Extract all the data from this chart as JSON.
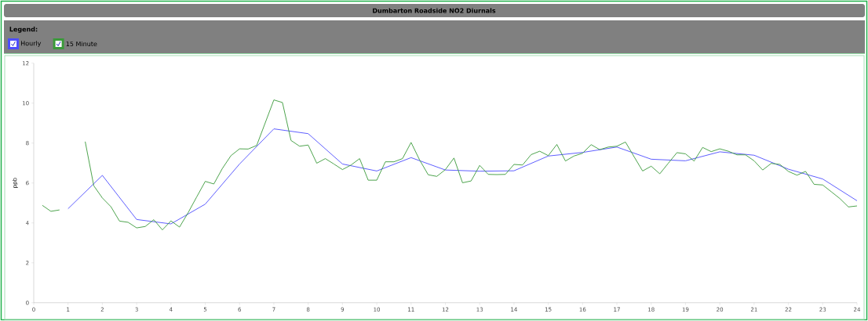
{
  "chart_data": {
    "type": "line",
    "title": "Dumbarton Roadside NO2 Diurnals",
    "legend_title": "Legend:",
    "ylabel": "ppb",
    "legend": "top left",
    "xlim": [
      0,
      24
    ],
    "xticks": [
      0,
      1,
      2,
      3,
      4,
      5,
      6,
      7,
      8,
      9,
      10,
      11,
      12,
      13,
      14,
      15,
      16,
      17,
      18,
      19,
      20,
      21,
      22,
      23,
      24
    ],
    "ylim": [
      0,
      12
    ],
    "yticks": [
      0,
      2,
      4,
      6,
      8,
      10,
      12
    ],
    "series": [
      {
        "name": "Hourly",
        "color": "#4d4dff",
        "x": [
          1,
          2,
          3,
          4,
          5,
          6,
          7,
          8,
          9,
          10,
          11,
          12,
          13,
          14,
          15,
          16,
          17,
          18,
          19,
          20,
          21,
          22,
          23,
          24
        ],
        "values": [
          4.71,
          6.38,
          4.17,
          3.95,
          4.94,
          6.95,
          8.71,
          8.47,
          6.95,
          6.6,
          7.27,
          6.65,
          6.59,
          6.61,
          7.35,
          7.53,
          7.8,
          7.19,
          7.11,
          7.56,
          7.39,
          6.69,
          6.2,
          5.11
        ]
      },
      {
        "name": "15 Minute",
        "color": "#3a9a3a",
        "x": [
          0.25,
          0.5,
          0.75,
          1,
          1.25,
          1.5,
          1.75,
          2,
          2.25,
          2.5,
          2.75,
          3,
          3.25,
          3.5,
          3.75,
          4,
          4.25,
          4.5,
          4.75,
          5,
          5.25,
          5.5,
          5.75,
          6,
          6.25,
          6.5,
          6.75,
          7,
          7.25,
          7.5,
          7.75,
          8,
          8.25,
          8.5,
          8.75,
          9,
          9.25,
          9.5,
          9.75,
          10,
          10.25,
          10.5,
          10.75,
          11,
          11.25,
          11.5,
          11.75,
          12,
          12.25,
          12.5,
          12.75,
          13,
          13.25,
          13.5,
          13.75,
          14,
          14.25,
          14.5,
          14.75,
          15,
          15.25,
          15.5,
          15.75,
          16,
          16.25,
          16.5,
          16.75,
          17,
          17.25,
          17.5,
          17.75,
          18,
          18.25,
          18.5,
          18.75,
          19,
          19.25,
          19.5,
          19.75,
          20,
          20.25,
          20.5,
          20.75,
          21,
          21.25,
          21.5,
          21.75,
          22,
          22.25,
          22.5,
          22.75,
          23,
          23.25,
          23.5,
          23.75,
          24
        ],
        "values": [
          4.88,
          4.58,
          4.65,
          null,
          null,
          8.07,
          5.86,
          5.25,
          4.81,
          4.09,
          4.03,
          3.75,
          3.82,
          4.16,
          3.65,
          4.1,
          3.79,
          4.51,
          5.3,
          6.08,
          5.95,
          6.73,
          7.37,
          7.71,
          7.7,
          7.88,
          9.02,
          10.16,
          10.03,
          8.13,
          7.84,
          7.9,
          6.99,
          7.22,
          6.95,
          6.67,
          6.9,
          7.22,
          6.14,
          6.14,
          7.06,
          7.06,
          7.22,
          8.03,
          7.15,
          6.41,
          6.33,
          6.67,
          7.25,
          6.01,
          6.1,
          6.88,
          6.43,
          6.42,
          6.43,
          6.93,
          6.9,
          7.42,
          7.59,
          7.37,
          7.93,
          7.1,
          7.35,
          7.49,
          7.92,
          7.67,
          7.8,
          7.84,
          8.05,
          7.32,
          6.6,
          6.84,
          6.46,
          6.99,
          7.52,
          7.46,
          7.1,
          7.78,
          7.57,
          7.71,
          7.59,
          7.41,
          7.41,
          7.11,
          6.65,
          6.98,
          6.93,
          6.58,
          6.39,
          6.58,
          5.93,
          5.9,
          5.56,
          5.22,
          4.8,
          4.85
        ]
      }
    ]
  }
}
